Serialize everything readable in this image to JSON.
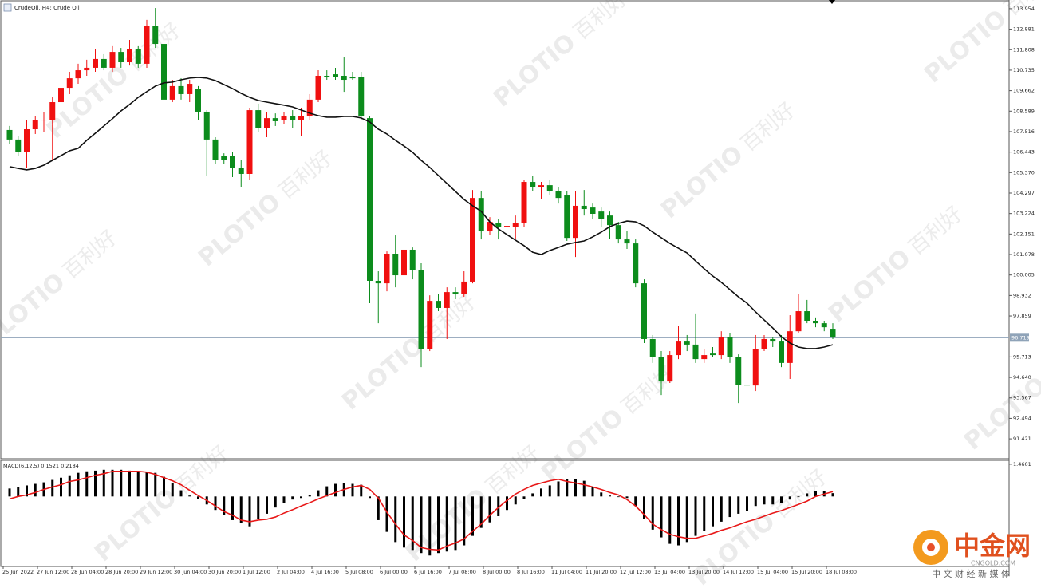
{
  "header": {
    "symbol": "CrudeOil, H4: Crude Oil"
  },
  "chart_data": [
    {
      "type": "candlestick",
      "categories": [
        "25 Jun 2022",
        null,
        null,
        null,
        "27 Jun 12:00",
        null,
        null,
        null,
        "28 Jun 04:00",
        null,
        null,
        null,
        "28 Jun 20:00",
        null,
        null,
        null,
        "29 Jun 12:00",
        null,
        null,
        null,
        "30 Jun 04:00",
        null,
        null,
        null,
        "30 Jun 20:00",
        null,
        null,
        null,
        "1 Jul 12:00",
        null,
        null,
        null,
        "2 Jul 04:00",
        null,
        null,
        null,
        "4 Jul 16:00",
        null,
        null,
        null,
        "5 Jul 08:00",
        null,
        null,
        null,
        "6 Jul 00:00",
        null,
        null,
        null,
        "6 Jul 16:00",
        null,
        null,
        null,
        "7 Jul 08:00",
        null,
        null,
        null,
        "8 Jul 00:00",
        null,
        null,
        null,
        "8 Jul 16:00",
        null,
        null,
        null,
        "11 Jul 04:00",
        null,
        null,
        null,
        "11 Jul 20:00",
        null,
        null,
        null,
        "12 Jul 12:00",
        null,
        null,
        null,
        "13 Jul 04:00",
        null,
        null,
        null,
        "13 Jul 20:00",
        null,
        null,
        null,
        "14 Jul 12:00",
        null,
        null,
        null,
        "15 Jul 04:00",
        null,
        null,
        null,
        "15 Jul 20:00",
        null,
        null,
        null,
        "18 Jul 08:00"
      ],
      "open": [
        107.6,
        107.1,
        106.47,
        107.64,
        108.14,
        108.14,
        109.06,
        109.81,
        110.31,
        110.73,
        110.86,
        111.32,
        110.86,
        111.69,
        111.15,
        111.82,
        111.07,
        113.07,
        112.11,
        109.19,
        109.9,
        109.48,
        109.73,
        108.56,
        107.1,
        106.22,
        106.26,
        105.63,
        105.3,
        108.64,
        107.72,
        108.22,
        108.14,
        108.35,
        108.14,
        108.35,
        109.19,
        110.44,
        110.52,
        110.44,
        110.36,
        110.36,
        108.22,
        99.7,
        99.57,
        101.12,
        99.99,
        101.33,
        100.28,
        96.14,
        98.65,
        98.28,
        99.11,
        99.03,
        99.66,
        104.04,
        102.29,
        102.71,
        102.5,
        102.5,
        102.71,
        104.88,
        104.59,
        104.71,
        104.38,
        104.17,
        101.95,
        103.63,
        103.54,
        103.33,
        103.12,
        102.62,
        101.87,
        101.66,
        99.57,
        96.65,
        95.69,
        94.43,
        95.81,
        96.52,
        96.36,
        95.6,
        95.89,
        95.81,
        96.77,
        95.69,
        94.26,
        94.22,
        96.14,
        96.65,
        96.52,
        95.4,
        97.06,
        98.11,
        97.61,
        97.48,
        97.19
      ],
      "high": [
        107.81,
        107.3,
        108.14,
        108.35,
        108.56,
        109.31,
        110.44,
        110.65,
        111.07,
        111.28,
        111.82,
        111.57,
        111.99,
        111.9,
        112.32,
        111.99,
        113.37,
        113.99,
        112.32,
        110.23,
        110.31,
        110.23,
        109.9,
        108.64,
        107.22,
        106.38,
        106.47,
        106.05,
        108.77,
        108.98,
        108.56,
        108.47,
        108.56,
        108.64,
        108.77,
        109.48,
        110.73,
        110.73,
        110.86,
        111.4,
        110.65,
        110.65,
        108.35,
        100.2,
        101.24,
        102.08,
        101.45,
        101.45,
        100.62,
        98.94,
        99.03,
        99.36,
        99.36,
        100.2,
        104.46,
        104.38,
        103.04,
        102.92,
        102.79,
        103.12,
        105.0,
        105.21,
        104.88,
        105.0,
        104.59,
        104.38,
        104.38,
        104.46,
        103.75,
        103.54,
        103.33,
        102.79,
        102.29,
        101.87,
        99.78,
        96.86,
        96.02,
        96.02,
        97.36,
        96.86,
        97.99,
        96.11,
        96.23,
        97.06,
        96.94,
        95.85,
        94.43,
        96.86,
        96.86,
        96.77,
        96.86,
        97.9,
        99.03,
        98.7,
        97.78,
        97.61,
        97.48
      ],
      "low": [
        106.89,
        106.26,
        105.63,
        107.39,
        107.51,
        106.05,
        108.77,
        109.48,
        110.02,
        110.44,
        110.65,
        110.73,
        110.65,
        110.86,
        110.98,
        110.86,
        110.86,
        111.9,
        109.06,
        109.06,
        109.19,
        109.06,
        108.14,
        105.21,
        105.84,
        105.84,
        105.13,
        104.59,
        105.0,
        107.51,
        107.22,
        107.81,
        107.93,
        107.72,
        107.3,
        108.14,
        109.06,
        110.23,
        110.23,
        109.6,
        110.23,
        108.14,
        98.53,
        97.48,
        99.15,
        99.36,
        99.36,
        99.78,
        95.18,
        96.02,
        98.11,
        96.65,
        98.74,
        98.86,
        99.57,
        101.87,
        102.08,
        101.87,
        102.2,
        101.87,
        102.5,
        104.38,
        103.96,
        104.17,
        103.75,
        101.79,
        100.95,
        103.12,
        102.92,
        102.5,
        101.87,
        101.66,
        101.37,
        99.36,
        96.44,
        95.4,
        93.72,
        94.35,
        95.6,
        96.02,
        95.4,
        95.4,
        95.69,
        95.6,
        95.4,
        93.3,
        90.58,
        93.93,
        96.02,
        96.23,
        95.18,
        94.56,
        96.94,
        97.48,
        97.27,
        97.06,
        96.65
      ],
      "close": [
        107.1,
        106.47,
        107.64,
        108.14,
        108.14,
        109.06,
        109.81,
        110.31,
        110.73,
        110.86,
        111.32,
        110.86,
        111.69,
        111.15,
        111.82,
        111.07,
        113.07,
        112.11,
        109.19,
        109.9,
        109.48,
        110.02,
        108.56,
        107.1,
        106.05,
        106.05,
        105.63,
        105.3,
        108.64,
        107.72,
        108.22,
        108.06,
        108.35,
        108.14,
        108.35,
        109.19,
        110.44,
        110.36,
        110.36,
        110.23,
        110.31,
        108.35,
        99.7,
        99.57,
        101.12,
        99.99,
        101.33,
        100.28,
        96.14,
        98.65,
        98.28,
        99.11,
        99.03,
        99.66,
        104.04,
        102.29,
        102.79,
        102.5,
        102.58,
        102.71,
        104.88,
        104.59,
        104.71,
        104.38,
        104.04,
        101.95,
        103.63,
        103.46,
        103.21,
        102.92,
        102.62,
        101.87,
        101.66,
        99.57,
        96.65,
        95.69,
        94.43,
        95.81,
        96.52,
        96.36,
        95.6,
        95.81,
        95.81,
        96.77,
        95.69,
        94.26,
        94.22,
        96.14,
        96.65,
        96.52,
        95.4,
        97.06,
        98.11,
        97.61,
        97.48,
        97.27,
        96.77
      ],
      "up_color": "#f01010",
      "down_color": "#0c8c1c",
      "ma": {
        "color": "#111111",
        "values": [
          105.68,
          105.59,
          105.51,
          105.59,
          105.76,
          106.01,
          106.26,
          106.51,
          106.64,
          107.06,
          107.43,
          107.81,
          108.19,
          108.6,
          108.94,
          109.31,
          109.61,
          109.9,
          110.07,
          110.11,
          110.23,
          110.32,
          110.36,
          110.32,
          110.19,
          109.98,
          109.77,
          109.52,
          109.31,
          109.15,
          109.06,
          108.98,
          108.9,
          108.81,
          108.65,
          108.48,
          108.35,
          108.27,
          108.27,
          108.31,
          108.31,
          108.23,
          108.02,
          107.64,
          107.39,
          107.06,
          106.76,
          106.43,
          106.01,
          105.64,
          105.22,
          104.8,
          104.38,
          103.96,
          103.63,
          103.34,
          102.79,
          102.42,
          102.12,
          101.83,
          101.54,
          101.2,
          101.08,
          101.29,
          101.45,
          101.62,
          101.71,
          101.79,
          102.0,
          102.25,
          102.54,
          102.71,
          102.83,
          102.79,
          102.58,
          102.25,
          101.96,
          101.66,
          101.41,
          101.16,
          100.74,
          100.33,
          99.95,
          99.62,
          99.24,
          98.86,
          98.53,
          98.07,
          97.65,
          97.23,
          96.77,
          96.44,
          96.23,
          96.15,
          96.15,
          96.23,
          96.35
        ]
      },
      "ylim": [
        90.38,
        114.41
      ],
      "yticks": [
        113.954,
        112.881,
        111.808,
        110.735,
        109.662,
        108.589,
        107.516,
        106.443,
        {
          "value": 105.37,
          "label": "105.370"
        },
        104.297,
        103.224,
        102.151,
        101.078,
        100.005,
        98.932,
        97.859,
        95.713,
        {
          "value": 94.64,
          "label": "94.640"
        },
        93.567,
        92.494,
        91.421
      ],
      "last_price": 96.719,
      "last_price_color": "#8fa3b8"
    },
    {
      "type": "macd",
      "title": "MACD(6,12,5) 0.1521 0.2184",
      "histogram": {
        "color": "#000000",
        "values": [
          0.36,
          0.43,
          0.5,
          0.57,
          0.64,
          0.75,
          0.85,
          0.96,
          1.07,
          1.14,
          1.17,
          1.21,
          1.21,
          1.21,
          1.17,
          1.14,
          1.1,
          1.07,
          0.89,
          0.61,
          0.28,
          0.04,
          -0.11,
          -0.36,
          -0.61,
          -0.85,
          -1.07,
          -1.21,
          -1.35,
          -1.0,
          -0.78,
          -0.5,
          -0.28,
          -0.14,
          -0.07,
          0.07,
          0.28,
          0.46,
          0.57,
          0.61,
          0.57,
          0.53,
          -0.07,
          -1.07,
          -1.6,
          -2.06,
          -2.31,
          -2.42,
          -2.56,
          -2.67,
          -2.56,
          -2.49,
          -2.42,
          -2.21,
          -1.78,
          -1.42,
          -1.17,
          -0.89,
          -0.61,
          -0.36,
          -0.11,
          0.14,
          0.36,
          0.5,
          0.68,
          0.78,
          0.78,
          0.71,
          0.43,
          0.18,
          0.04,
          0,
          -0.07,
          -0.43,
          -1.0,
          -1.5,
          -1.85,
          -2.14,
          -2.21,
          -2.06,
          -1.78,
          -1.57,
          -1.35,
          -1.14,
          -0.93,
          -0.78,
          -0.64,
          -0.43,
          -0.36,
          -0.36,
          -0.28,
          -0.14,
          0,
          0.14,
          0.25,
          0.25,
          0.15
        ]
      },
      "signal": {
        "color": "#e81818",
        "values": [
          -0.11,
          0,
          0.07,
          0.18,
          0.32,
          0.43,
          0.53,
          0.68,
          0.75,
          0.85,
          0.96,
          1.03,
          1.14,
          1.14,
          1.14,
          1.14,
          1.1,
          1.0,
          0.85,
          0.71,
          0.53,
          0.28,
          0.04,
          -0.18,
          -0.43,
          -0.68,
          -0.85,
          -1.07,
          -1.14,
          -1.07,
          -1.03,
          -0.93,
          -0.75,
          -0.6,
          -0.43,
          -0.28,
          -0.11,
          0.04,
          0.18,
          0.32,
          0.43,
          0.5,
          0.32,
          -0.07,
          -0.71,
          -1.25,
          -1.74,
          -1.99,
          -2.31,
          -2.39,
          -2.42,
          -2.24,
          -2.1,
          -1.92,
          -1.57,
          -1.25,
          -0.85,
          -0.5,
          -0.18,
          0.11,
          0.32,
          0.5,
          0.61,
          0.71,
          0.78,
          0.68,
          0.61,
          0.53,
          0.43,
          0.32,
          0.18,
          0.07,
          -0.14,
          -0.43,
          -0.82,
          -1.25,
          -1.5,
          -1.71,
          -1.82,
          -1.89,
          -1.89,
          -1.78,
          -1.67,
          -1.53,
          -1.42,
          -1.28,
          -1.14,
          -1.03,
          -0.89,
          -0.75,
          -0.64,
          -0.5,
          -0.36,
          -0.21,
          0,
          0.11,
          0.22
        ]
      },
      "ylim": [
        -3.13,
        1.6
      ],
      "yticks": [
        1.4601
      ]
    }
  ],
  "watermark": {
    "brand": "PLOTIO",
    "text": "百利好"
  },
  "logo": {
    "name": "中金网",
    "url": "CNGOLD.COM",
    "tagline": "中 文 财 经 新 媒 体"
  }
}
